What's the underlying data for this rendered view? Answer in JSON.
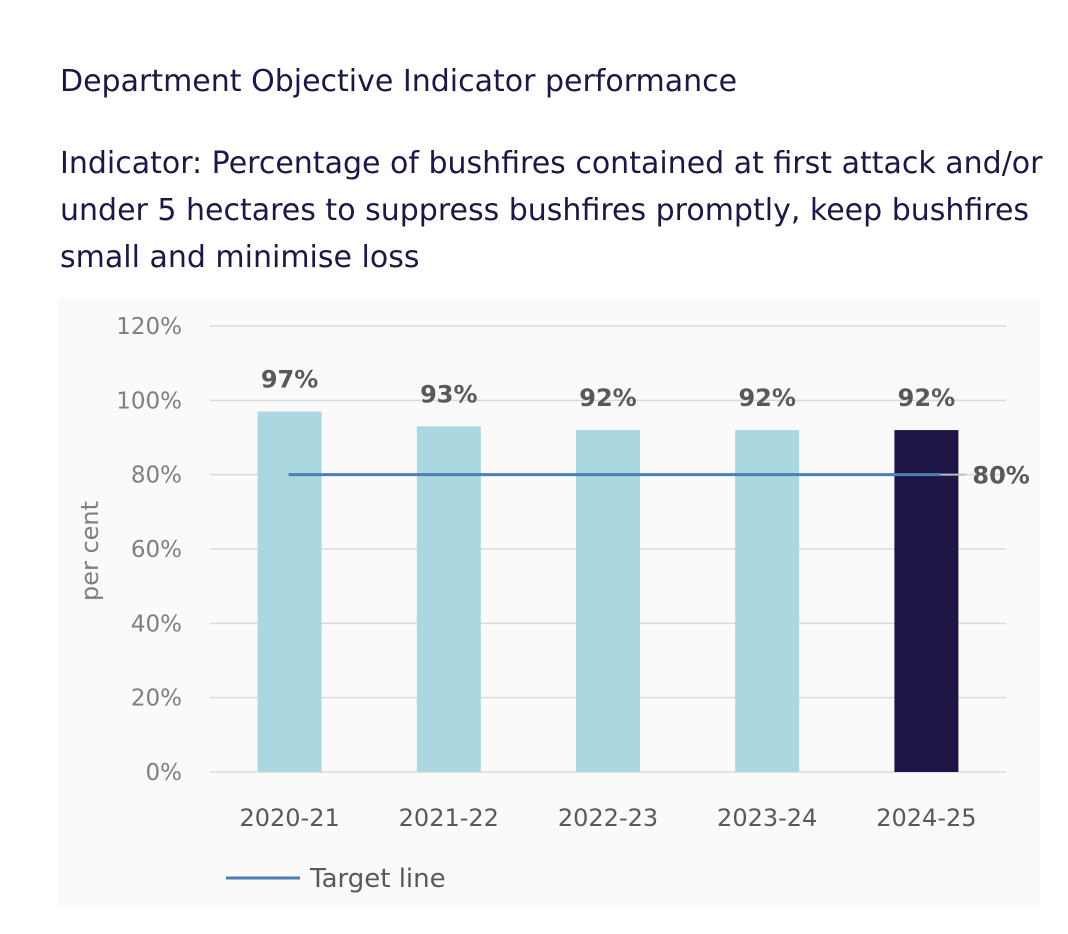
{
  "page": {
    "heading": "Department Objective Indicator performance",
    "subheading": "Indicator: Percentage of bushfires contained at first attack and/or under 5 hectares to suppress bushfires promptly, keep bushfires small and minimise loss"
  },
  "chart_data": {
    "type": "bar",
    "title": "",
    "xlabel": "",
    "ylabel": "per cent",
    "categories": [
      "2020-21",
      "2021-22",
      "2022-23",
      "2023-24",
      "2024-25"
    ],
    "values": [
      97,
      93,
      92,
      92,
      92
    ],
    "data_labels": [
      "97%",
      "93%",
      "92%",
      "92%",
      "92%"
    ],
    "ylim": [
      0,
      120
    ],
    "yticks": [
      0,
      20,
      40,
      60,
      80,
      100,
      120
    ],
    "ytick_labels": [
      "0%",
      "20%",
      "40%",
      "60%",
      "80%",
      "100%",
      "120%"
    ],
    "bar_color": "#abd7e0",
    "highlight_color": "#201547",
    "highlight_category": "2024-25",
    "target": {
      "value": 80,
      "label": "80%",
      "color": "#4a7eb5",
      "legend_label": "Target line"
    },
    "grid": true,
    "legend_position": "bottom-left"
  }
}
